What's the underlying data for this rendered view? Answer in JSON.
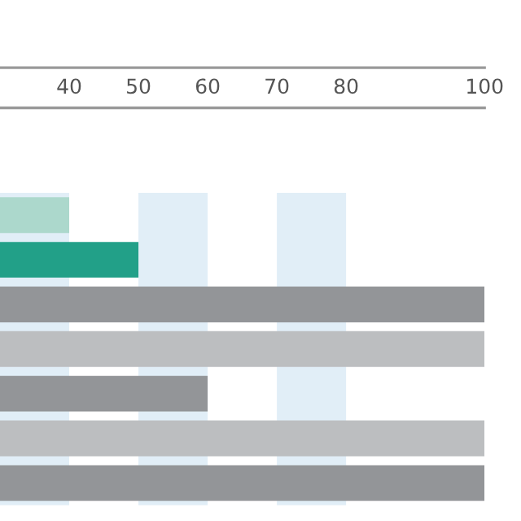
{
  "chart_data": {
    "type": "bar",
    "orientation": "horizontal",
    "categories": [
      null,
      null,
      null,
      null,
      null,
      null,
      null
    ],
    "values": [
      40,
      50,
      100,
      100,
      60,
      100,
      100
    ],
    "colors": [
      "#acd8cc",
      "#22a088",
      "#939598",
      "#bcbec0",
      "#939598",
      "#bcbec0",
      "#939598"
    ],
    "xlim": [
      30,
      100
    ],
    "xticks": [
      40,
      50,
      60,
      70,
      80,
      100
    ],
    "bands": [
      {
        "axis": "x",
        "from": 30,
        "to": 40,
        "color": "#e1eef7"
      },
      {
        "axis": "x",
        "from": 50,
        "to": 60,
        "color": "#e1eef7"
      },
      {
        "axis": "x",
        "from": 70,
        "to": 80,
        "color": "#e1eef7"
      }
    ],
    "grid": false,
    "legend": false
  }
}
